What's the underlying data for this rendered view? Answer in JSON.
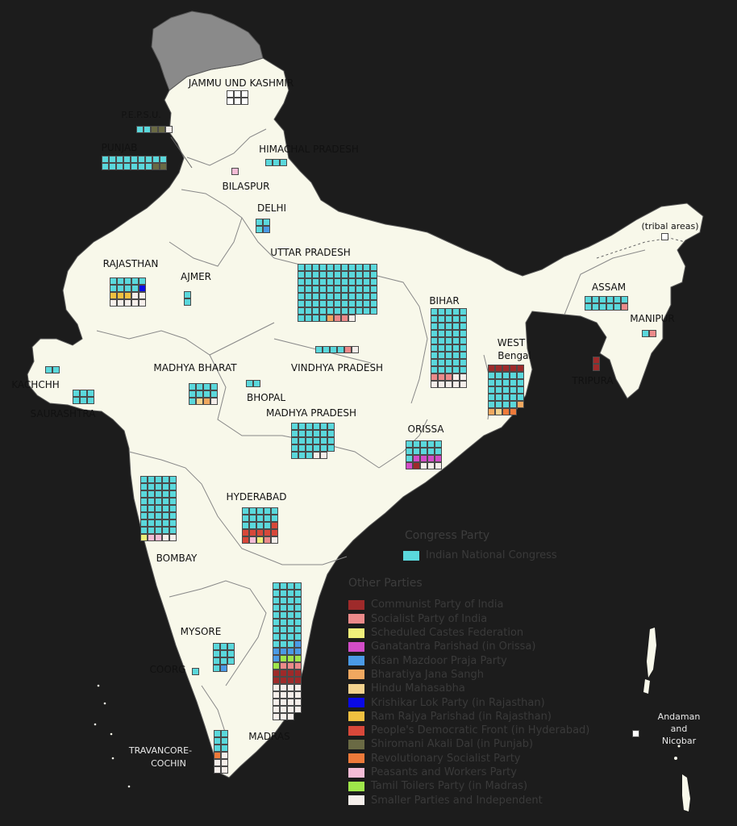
{
  "colors": {
    "background": "#1c1c1c",
    "land": "#f8f8ea",
    "jk_grey": "#888888",
    "border": "#777777"
  },
  "parties": {
    "INC": {
      "name": "Indian National Congress",
      "color": "#5ad8dc"
    },
    "CPI": {
      "name": "Communist Party of India",
      "color": "#9e2a2a"
    },
    "SPI": {
      "name": "Socialist Party of India",
      "color": "#ec8a8a"
    },
    "SCF": {
      "name": "Scheduled Castes Federation",
      "color": "#eeee7a"
    },
    "GP": {
      "name": "Ganatantra Parishad (in Orissa)",
      "color": "#d24cc8"
    },
    "KMPP": {
      "name": "Kisan Mazdoor Praja Party",
      "color": "#4a9ae6"
    },
    "BJS": {
      "name": "Bharatiya Jana Sangh",
      "color": "#f0a860"
    },
    "HMS": {
      "name": "Hindu Mahasabha",
      "color": "#f3d28e"
    },
    "KLP": {
      "name": "Krishikar Lok Party (in Rajasthan)",
      "color": "#0a0ae6"
    },
    "RRP": {
      "name": "Ram Rajya Parishad (in Rajasthan)",
      "color": "#f0c040"
    },
    "PDF": {
      "name": "People's Democratic Front (in Hyderabad)",
      "color": "#d8483a"
    },
    "SAD": {
      "name": "Shiromani Akali Dal (in Punjab)",
      "color": "#6a6a44"
    },
    "RSP": {
      "name": "Revolutionary Socialist Party",
      "color": "#ee7a3a"
    },
    "PWP": {
      "name": "Peasants and Workers Party",
      "color": "#f4bcd6"
    },
    "TTP": {
      "name": "Tamil Toilers Party (in Madras)",
      "color": "#9ee64a"
    },
    "OTH": {
      "name": "Smaller Parties and Independent",
      "color": "#f5eeea"
    },
    "VAC": {
      "name": "",
      "color": "#ffffff"
    }
  },
  "legend": {
    "congress_heading": "Congress Party",
    "congress_item": "Indian National Congress",
    "others_heading": "Other Parties",
    "other_keys": [
      "CPI",
      "SPI",
      "SCF",
      "GP",
      "KMPP",
      "BJS",
      "HMS",
      "KLP",
      "RRP",
      "PDF",
      "SAD",
      "RSP",
      "PWP",
      "TTP",
      "OTH"
    ]
  },
  "labels": {
    "jk": "JAMMU UND KASHMIR",
    "pepsu": "P.E.P.S.U.",
    "punjab": "PUNJAB",
    "himachal": "HIMACHAL PRADESH",
    "bilaspur": "BILASPUR",
    "delhi": "DELHI",
    "uttar": "UTTAR PRADESH",
    "rajasthan": "RAJASTHAN",
    "ajmer": "AJMER",
    "tribal": "(tribal areas)",
    "assam": "ASSAM",
    "bihar": "BIHAR",
    "manipur": "MANIPUR",
    "tripura": "TRIPURA",
    "west_bengal_1": "WEST",
    "west_bengal_2": "Bengal",
    "vindhya": "VINDHYA PRADESH",
    "madhya_bharat": "MADHYA BHARAT",
    "kachchh": "KACHCHH",
    "bhopal": "BHOPAL",
    "saurashtra": "SAURASHTRA",
    "madhya_pradesh": "MADHYA PRADESH",
    "orissa": "ORISSA",
    "hyderabad": "HYDERABAD",
    "bombay": "BOMBAY",
    "mysore": "MYSORE",
    "coorg": "COORG",
    "madras": "MADRAS",
    "travancore_1": "TRAVANCORE-",
    "travancore_2": "COCHIN",
    "andaman_1": "Andaman",
    "andaman_2": "and",
    "andaman_3": "Nicobar"
  },
  "states": [
    {
      "name": "jammu-kashmir",
      "cols": 3,
      "seats": [
        {
          "p": "VAC",
          "n": 6
        }
      ]
    },
    {
      "name": "pepsu",
      "cols": 5,
      "seats": [
        {
          "p": "INC",
          "n": 2
        },
        {
          "p": "SAD",
          "n": 2
        },
        {
          "p": "OTH",
          "n": 1
        }
      ]
    },
    {
      "name": "punjab",
      "cols": 9,
      "seats": [
        {
          "p": "INC",
          "n": 16
        },
        {
          "p": "SAD",
          "n": 2
        }
      ]
    },
    {
      "name": "himachal-pradesh",
      "cols": 3,
      "seats": [
        {
          "p": "INC",
          "n": 3
        }
      ]
    },
    {
      "name": "bilaspur",
      "cols": 1,
      "seats": [
        {
          "p": "PWP",
          "n": 1
        }
      ]
    },
    {
      "name": "delhi",
      "cols": 2,
      "seats": [
        {
          "p": "INC",
          "n": 3
        },
        {
          "p": "KMPP",
          "n": 1
        }
      ]
    },
    {
      "name": "uttar-pradesh",
      "cols": 11,
      "seats": [
        {
          "p": "INC",
          "n": 81
        },
        {
          "p": "BJS",
          "n": 1
        },
        {
          "p": "SPI",
          "n": 2
        },
        {
          "p": "OTH",
          "n": 1
        }
      ]
    },
    {
      "name": "rajasthan",
      "cols": 5,
      "seats": [
        {
          "p": "INC",
          "n": 9
        },
        {
          "p": "KLP",
          "n": 1
        },
        {
          "p": "RRP",
          "n": 3
        },
        {
          "p": "OTH",
          "n": 7
        }
      ]
    },
    {
      "name": "ajmer",
      "cols": 1,
      "seats": [
        {
          "p": "INC",
          "n": 2
        }
      ]
    },
    {
      "name": "tribal-areas",
      "cols": 1,
      "seats": [
        {
          "p": "VAC",
          "n": 1
        }
      ]
    },
    {
      "name": "assam",
      "cols": 6,
      "seats": [
        {
          "p": "INC",
          "n": 11
        },
        {
          "p": "SPI",
          "n": 1
        }
      ]
    },
    {
      "name": "bihar",
      "cols": 5,
      "seats": [
        {
          "p": "INC",
          "n": 45
        },
        {
          "p": "SPI",
          "n": 3
        },
        {
          "p": "OTH",
          "n": 7
        }
      ]
    },
    {
      "name": "manipur",
      "cols": 2,
      "seats": [
        {
          "p": "INC",
          "n": 1
        },
        {
          "p": "SPI",
          "n": 1
        }
      ]
    },
    {
      "name": "tripura",
      "cols": 1,
      "seats": [
        {
          "p": "CPI",
          "n": 2
        }
      ]
    },
    {
      "name": "west-bengal",
      "cols": 5,
      "seats": [
        {
          "p": "CPI",
          "n": 5
        },
        {
          "p": "INC",
          "n": 24
        },
        {
          "p": "BJS",
          "n": 2
        },
        {
          "p": "HMS",
          "n": 1
        },
        {
          "p": "RSP",
          "n": 2
        }
      ]
    },
    {
      "name": "vindhya-pradesh",
      "cols": 6,
      "seats": [
        {
          "p": "INC",
          "n": 4
        },
        {
          "p": "SPI",
          "n": 1
        },
        {
          "p": "OTH",
          "n": 1
        }
      ]
    },
    {
      "name": "kachchh",
      "cols": 2,
      "seats": [
        {
          "p": "INC",
          "n": 2
        }
      ]
    },
    {
      "name": "madhya-bharat",
      "cols": 4,
      "seats": [
        {
          "p": "INC",
          "n": 9
        },
        {
          "p": "HMS",
          "n": 1
        },
        {
          "p": "BJS",
          "n": 1
        },
        {
          "p": "OTH",
          "n": 1
        }
      ]
    },
    {
      "name": "bhopal",
      "cols": 2,
      "seats": [
        {
          "p": "INC",
          "n": 2
        }
      ]
    },
    {
      "name": "saurashtra",
      "cols": 3,
      "seats": [
        {
          "p": "INC",
          "n": 6
        }
      ]
    },
    {
      "name": "madhya-pradesh",
      "cols": 6,
      "seats": [
        {
          "p": "INC",
          "n": 27
        },
        {
          "p": "OTH",
          "n": 2
        }
      ]
    },
    {
      "name": "orissa",
      "cols": 5,
      "seats": [
        {
          "p": "INC",
          "n": 11
        },
        {
          "p": "GP",
          "n": 5
        },
        {
          "p": "CPI",
          "n": 1
        },
        {
          "p": "OTH",
          "n": 3
        }
      ]
    },
    {
      "name": "bombay",
      "cols": 5,
      "seats": [
        {
          "p": "INC",
          "n": 40
        },
        {
          "p": "SCF",
          "n": 1
        },
        {
          "p": "PWP",
          "n": 2
        },
        {
          "p": "OTH",
          "n": 2
        }
      ]
    },
    {
      "name": "hyderabad",
      "cols": 5,
      "seats": [
        {
          "p": "INC",
          "n": 14
        },
        {
          "p": "PDF",
          "n": 7
        },
        {
          "p": "PWP",
          "n": 1
        },
        {
          "p": "SCF",
          "n": 1
        },
        {
          "p": "SPI",
          "n": 1
        },
        {
          "p": "OTH",
          "n": 1
        }
      ]
    },
    {
      "name": "mysore",
      "cols": 3,
      "seats": [
        {
          "p": "INC",
          "n": 10
        },
        {
          "p": "KMPP",
          "n": 1
        }
      ]
    },
    {
      "name": "coorg",
      "cols": 1,
      "seats": [
        {
          "p": "INC",
          "n": 1
        }
      ]
    },
    {
      "name": "madras",
      "cols": 4,
      "seats": [
        {
          "p": "INC",
          "n": 35
        },
        {
          "p": "KMPP",
          "n": 6
        },
        {
          "p": "TTP",
          "n": 4
        },
        {
          "p": "SPI",
          "n": 3
        },
        {
          "p": "CPI",
          "n": 8
        },
        {
          "p": "OTH",
          "n": 19
        }
      ]
    },
    {
      "name": "travancore-cochin",
      "cols": 2,
      "seats": [
        {
          "p": "INC",
          "n": 6
        },
        {
          "p": "RSP",
          "n": 1
        },
        {
          "p": "OTH",
          "n": 5
        }
      ]
    },
    {
      "name": "andaman-nicobar",
      "cols": 1,
      "seats": [
        {
          "p": "VAC",
          "n": 1
        }
      ]
    }
  ]
}
